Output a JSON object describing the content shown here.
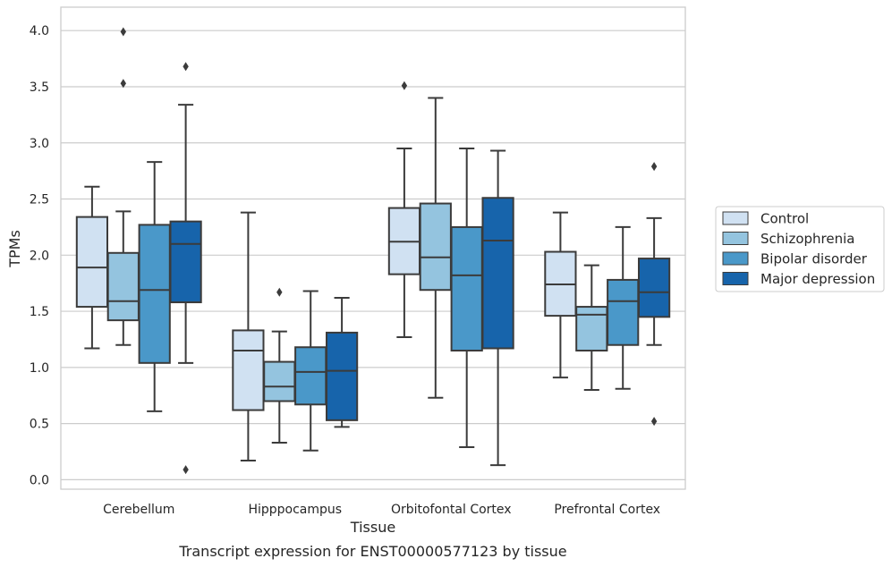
{
  "chart_data": {
    "type": "box",
    "xlabel": "Tissue",
    "ylabel": "TPMs",
    "caption": "Transcript expression for ENST00000577123 by tissue",
    "ylim": [
      -0.08,
      4.2
    ],
    "yticks": [
      "0.0",
      "0.5",
      "1.0",
      "1.5",
      "2.0",
      "2.5",
      "3.0",
      "3.5",
      "4.0"
    ],
    "grid": "horizontal",
    "legend_position": "right",
    "categories": [
      "Cerebellum",
      "Hipppocampus",
      "Orbitofontal Cortex",
      "Prefrontal Cortex"
    ],
    "series": [
      {
        "name": "Control",
        "color": "#d0e1f2",
        "boxes": [
          {
            "whisker_low": 1.17,
            "q1": 1.54,
            "median": 1.89,
            "q3": 2.34,
            "whisker_high": 2.61,
            "outliers": []
          },
          {
            "whisker_low": 0.17,
            "q1": 0.62,
            "median": 1.15,
            "q3": 1.33,
            "whisker_high": 2.38,
            "outliers": []
          },
          {
            "whisker_low": 1.27,
            "q1": 1.83,
            "median": 2.12,
            "q3": 2.42,
            "whisker_high": 2.95,
            "outliers": [
              3.51
            ]
          },
          {
            "whisker_low": 0.91,
            "q1": 1.46,
            "median": 1.74,
            "q3": 2.03,
            "whisker_high": 2.38,
            "outliers": []
          }
        ]
      },
      {
        "name": "Schizophrenia",
        "color": "#94c4df",
        "boxes": [
          {
            "whisker_low": 1.2,
            "q1": 1.42,
            "median": 1.59,
            "q3": 2.02,
            "whisker_high": 2.39,
            "outliers": [
              3.99,
              3.53
            ]
          },
          {
            "whisker_low": 0.33,
            "q1": 0.7,
            "median": 0.83,
            "q3": 1.05,
            "whisker_high": 1.32,
            "outliers": [
              1.67
            ]
          },
          {
            "whisker_low": 0.73,
            "q1": 1.69,
            "median": 1.98,
            "q3": 2.46,
            "whisker_high": 3.4,
            "outliers": []
          },
          {
            "whisker_low": 0.8,
            "q1": 1.15,
            "median": 1.47,
            "q3": 1.54,
            "whisker_high": 1.91,
            "outliers": []
          }
        ]
      },
      {
        "name": "Bipolar disorder",
        "color": "#4a98c9",
        "boxes": [
          {
            "whisker_low": 0.61,
            "q1": 1.04,
            "median": 1.69,
            "q3": 2.27,
            "whisker_high": 2.83,
            "outliers": []
          },
          {
            "whisker_low": 0.26,
            "q1": 0.67,
            "median": 0.96,
            "q3": 1.18,
            "whisker_high": 1.68,
            "outliers": []
          },
          {
            "whisker_low": 0.29,
            "q1": 1.15,
            "median": 1.82,
            "q3": 2.25,
            "whisker_high": 2.95,
            "outliers": []
          },
          {
            "whisker_low": 0.81,
            "q1": 1.2,
            "median": 1.59,
            "q3": 1.78,
            "whisker_high": 2.25,
            "outliers": []
          }
        ]
      },
      {
        "name": "Major depression",
        "color": "#1764ab",
        "boxes": [
          {
            "whisker_low": 1.04,
            "q1": 1.58,
            "median": 2.1,
            "q3": 2.3,
            "whisker_high": 3.34,
            "outliers": [
              3.68,
              0.09
            ]
          },
          {
            "whisker_low": 0.47,
            "q1": 0.53,
            "median": 0.97,
            "q3": 1.31,
            "whisker_high": 1.62,
            "outliers": []
          },
          {
            "whisker_low": 0.13,
            "q1": 1.17,
            "median": 2.13,
            "q3": 2.51,
            "whisker_high": 2.93,
            "outliers": []
          },
          {
            "whisker_low": 1.2,
            "q1": 1.45,
            "median": 1.67,
            "q3": 1.97,
            "whisker_high": 2.33,
            "outliers": [
              2.79,
              0.52
            ]
          }
        ]
      }
    ]
  }
}
